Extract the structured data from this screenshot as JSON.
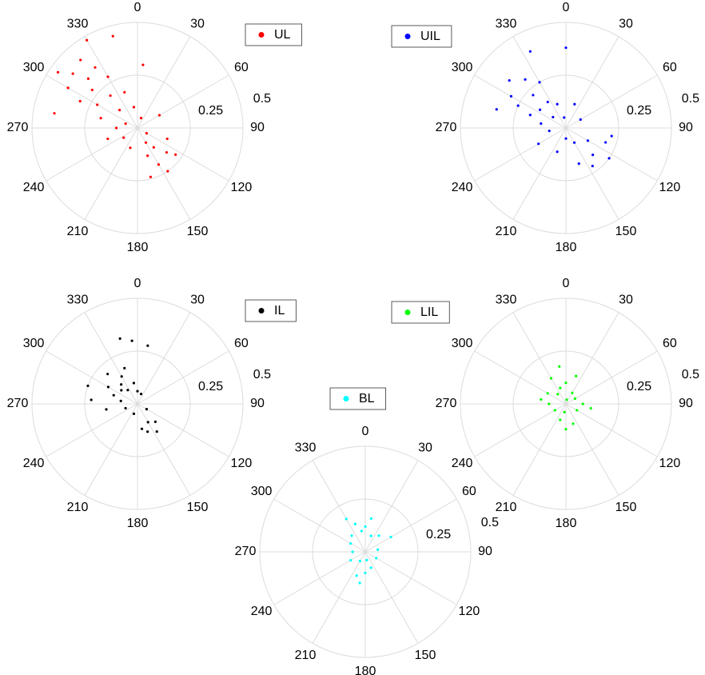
{
  "chart_data": [
    {
      "type": "polar_scatter",
      "legend": "northeast",
      "rlim": [
        0,
        0.5
      ],
      "rticks": [
        0.25,
        0.5
      ],
      "thetaticks": [
        0,
        30,
        60,
        90,
        120,
        150,
        180,
        210,
        240,
        270,
        300,
        330
      ],
      "series": [
        {
          "name": "UL",
          "color": "#ff0000",
          "theta": [
            305,
            310,
            300,
            320,
            315,
            325,
            295,
            310,
            330,
            300,
            320,
            340,
            285,
            315,
            350,
            270,
            290,
            20,
            120,
            150,
            140,
            160,
            130,
            150,
            145,
            165,
            125,
            110,
            200,
            250,
            345,
            5,
            60,
            330,
            280,
            235
          ],
          "r": [
            0.46,
            0.4,
            0.38,
            0.42,
            0.33,
            0.35,
            0.3,
            0.28,
            0.28,
            0.22,
            0.2,
            0.18,
            0.18,
            0.12,
            0.1,
            0.1,
            0.06,
            0.05,
            0.05,
            0.08,
            0.12,
            0.14,
            0.18,
            0.2,
            0.25,
            0.24,
            0.22,
            0.15,
            0.1,
            0.15,
            0.45,
            0.3,
            0.12,
            0.48,
            0.4,
            0.08
          ]
        }
      ]
    },
    {
      "type": "polar_scatter",
      "legend": "northwest",
      "rlim": [
        0,
        0.5
      ],
      "rticks": [
        0.25,
        0.5
      ],
      "thetaticks": [
        0,
        30,
        60,
        90,
        120,
        150,
        180,
        210,
        240,
        270,
        300,
        330
      ],
      "series": [
        {
          "name": "UIL",
          "color": "#0000ff",
          "theta": [
            300,
            310,
            320,
            295,
            315,
            330,
            290,
            305,
            325,
            340,
            280,
            310,
            350,
            260,
            180,
            150,
            120,
            135,
            110,
            100,
            125,
            145,
            160,
            200,
            240,
            285,
            0,
            335,
            20,
            60
          ],
          "r": [
            0.3,
            0.35,
            0.3,
            0.25,
            0.22,
            0.25,
            0.18,
            0.15,
            0.15,
            0.12,
            0.12,
            0.08,
            0.05,
            0.08,
            0.05,
            0.08,
            0.12,
            0.18,
            0.2,
            0.22,
            0.25,
            0.22,
            0.18,
            0.12,
            0.15,
            0.34,
            0.38,
            0.4,
            0.12,
            0.08
          ]
        }
      ]
    },
    {
      "type": "polar_scatter",
      "legend": "northeast",
      "rlim": [
        0,
        0.5
      ],
      "rticks": [
        0.25,
        0.5
      ],
      "thetaticks": [
        0,
        30,
        60,
        90,
        120,
        150,
        180,
        210,
        240,
        270,
        300,
        330
      ],
      "series": [
        {
          "name": "IL",
          "color": "#000000",
          "theta": [
            320,
            330,
            310,
            340,
            300,
            315,
            325,
            290,
            350,
            280,
            0,
            20,
            120,
            150,
            160,
            145,
            170,
            135,
            200,
            250,
            345,
            355,
            10,
            290,
            275,
            260
          ],
          "r": [
            0.12,
            0.15,
            0.1,
            0.18,
            0.16,
            0.2,
            0.08,
            0.12,
            0.1,
            0.08,
            0.06,
            0.05,
            0.05,
            0.1,
            0.14,
            0.16,
            0.12,
            0.12,
            0.05,
            0.06,
            0.32,
            0.3,
            0.28,
            0.25,
            0.22,
            0.15
          ]
        }
      ]
    },
    {
      "type": "polar_scatter",
      "legend": "northwest",
      "rlim": [
        0,
        0.5
      ],
      "rticks": [
        0.25,
        0.5
      ],
      "thetaticks": [
        0,
        30,
        60,
        90,
        120,
        150,
        180,
        210,
        240,
        270,
        300,
        330
      ],
      "series": [
        {
          "name": "LIL",
          "color": "#00ff00",
          "theta": [
            340,
            320,
            0,
            30,
            300,
            270,
            240,
            200,
            180,
            160,
            120,
            90,
            60,
            350,
            330,
            280,
            20,
            100,
            190,
            10
          ],
          "r": [
            0.08,
            0.06,
            0.1,
            0.06,
            0.1,
            0.08,
            0.06,
            0.08,
            0.12,
            0.1,
            0.06,
            0.08,
            0.05,
            0.18,
            0.14,
            0.12,
            0.14,
            0.12,
            0.04,
            0.02
          ]
        }
      ]
    },
    {
      "type": "polar_scatter",
      "legend": "north",
      "rlim": [
        0,
        0.5
      ],
      "rticks": [
        0.25,
        0.5
      ],
      "thetaticks": [
        0,
        30,
        60,
        90,
        120,
        150,
        180,
        210,
        240,
        270,
        300,
        330
      ],
      "series": [
        {
          "name": "BL",
          "color": "#00ffff",
          "theta": [
            350,
            340,
            0,
            20,
            320,
            300,
            270,
            240,
            200,
            190,
            180,
            160,
            120,
            80,
            40,
            330,
            10,
            210,
            60,
            170
          ],
          "r": [
            0.1,
            0.14,
            0.12,
            0.08,
            0.1,
            0.08,
            0.06,
            0.08,
            0.12,
            0.15,
            0.1,
            0.08,
            0.06,
            0.06,
            0.1,
            0.18,
            0.16,
            0.05,
            0.14,
            0.04
          ]
        }
      ]
    }
  ]
}
